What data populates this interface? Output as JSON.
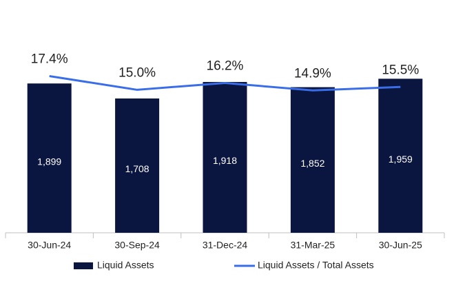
{
  "chart_data": {
    "type": "bar",
    "categories": [
      "30-Jun-24",
      "30-Sep-24",
      "31-Dec-24",
      "31-Mar-25",
      "30-Jun-25"
    ],
    "series": [
      {
        "name": "Liquid Assets",
        "type": "bar",
        "color": "#0b1640",
        "values": [
          1899,
          1708,
          1918,
          1852,
          1959
        ],
        "value_labels": [
          "1,899",
          "1,708",
          "1,918",
          "1,852",
          "1,959"
        ]
      },
      {
        "name": "Liquid Assets / Total Assets",
        "type": "line",
        "color": "#3a6ee8",
        "axis": "y2",
        "values": [
          17.4,
          15.0,
          16.2,
          14.9,
          15.5
        ],
        "value_labels": [
          "17.4%",
          "15.0%",
          "16.2%",
          "14.9%",
          "15.5%"
        ]
      }
    ],
    "ylim": [
      0,
      2400
    ],
    "y2lim": [
      -10,
      23
    ],
    "grid": false,
    "legend": "bottom"
  }
}
